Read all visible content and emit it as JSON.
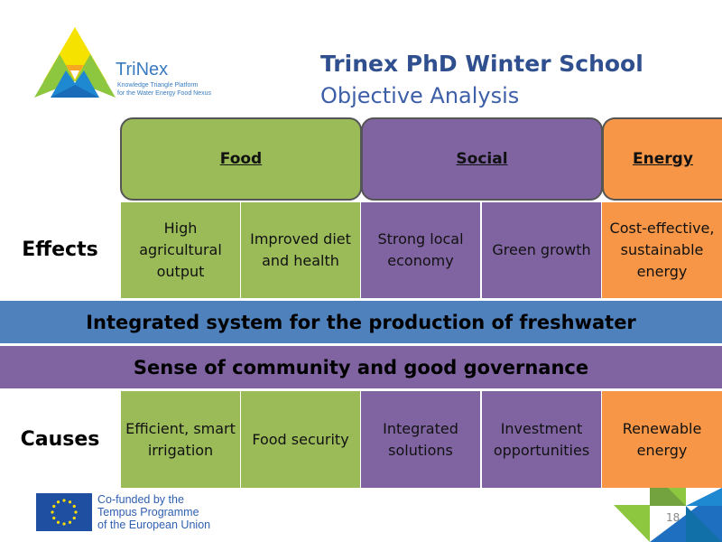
{
  "logo": {
    "name": "TriNex",
    "tagline_1": "Knowledge Triangle Platform",
    "tagline_2": "for the Water Energy Food Nexus"
  },
  "header": {
    "title": "Trinex PhD Winter School",
    "subtitle": "Objective Analysis"
  },
  "categories": [
    {
      "label": "Food",
      "color": "#9bbb59"
    },
    {
      "label": "Social",
      "color": "#8064a2"
    },
    {
      "label": "Energy",
      "color": "#f79646"
    }
  ],
  "effects": {
    "label": "Effects",
    "cells": [
      "High agricultural output",
      "Improved diet and health",
      "Strong local economy",
      "Green growth",
      "Cost-effective, sustainable energy"
    ]
  },
  "bands": [
    "Integrated system for the production of freshwater",
    "Sense of community and good governance"
  ],
  "causes": {
    "label": "Causes",
    "cells": [
      "Efficient, smart irrigation",
      "Food security",
      "Integrated solutions",
      "Investment opportunities",
      "Renewable energy"
    ]
  },
  "footer": {
    "eu_line_1": "Co-funded by the",
    "eu_line_2": "Tempus Programme",
    "eu_line_3": "of the European Union",
    "page_number": "18"
  }
}
